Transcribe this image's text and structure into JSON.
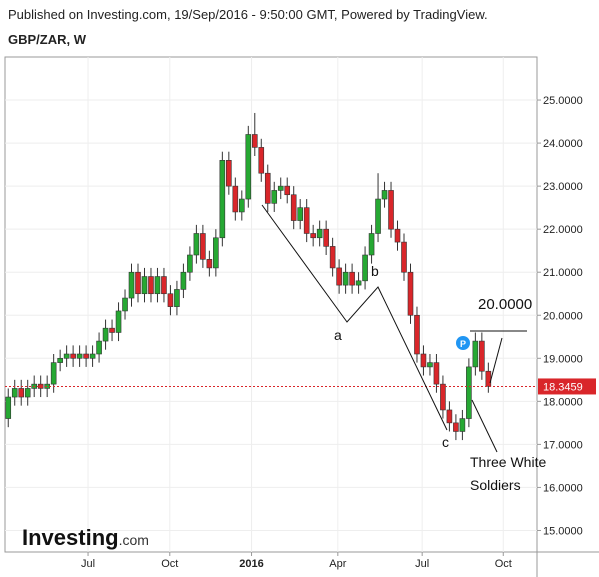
{
  "header": {
    "published": "Published on Investing.com, 19/Sep/2016 - 9:50:00 GMT, Powered by TradingView.",
    "symbol": "GBP/ZAR, W"
  },
  "logo": {
    "name": "Investing",
    "suffix": ".com"
  },
  "chart_data": {
    "type": "candlestick",
    "x": [
      0,
      1,
      2,
      3,
      4,
      5,
      6,
      7,
      8,
      9,
      10,
      11,
      12,
      13,
      14,
      15,
      16,
      17,
      18,
      19,
      20,
      21,
      22,
      23,
      24,
      25,
      26,
      27,
      28,
      29,
      30,
      31,
      32,
      33,
      34,
      35,
      36,
      37,
      38,
      39,
      40,
      41,
      42,
      43,
      44,
      45,
      46,
      47,
      48,
      49,
      50,
      51,
      52,
      53,
      54,
      55,
      56,
      57,
      58,
      59,
      60,
      61,
      62,
      63,
      64,
      65,
      66,
      67,
      68,
      69,
      70,
      71,
      72,
      73,
      74
    ],
    "series": [
      {
        "up_color": "#26a833",
        "down_color": "#d9262a",
        "open": [
          17.6,
          18.1,
          18.3,
          18.1,
          18.3,
          18.4,
          18.3,
          18.4,
          18.9,
          19.0,
          19.1,
          19.0,
          19.1,
          19.0,
          19.1,
          19.4,
          19.7,
          19.6,
          20.1,
          20.4,
          21.0,
          20.5,
          20.9,
          20.5,
          20.9,
          20.5,
          20.2,
          20.6,
          21.0,
          21.4,
          21.9,
          21.3,
          21.1,
          21.8,
          23.6,
          23.0,
          22.4,
          22.7,
          24.2,
          23.9,
          23.3,
          22.6,
          22.9,
          23.0,
          22.8,
          22.2,
          22.5,
          21.9,
          21.8,
          22.0,
          21.6,
          21.1,
          20.7,
          21.0,
          20.7,
          20.8,
          21.4,
          21.9,
          22.7,
          22.9,
          22.0,
          21.7,
          21.0,
          20.0,
          19.1,
          18.8,
          18.9,
          18.4,
          17.8,
          17.5,
          17.3,
          17.6,
          18.8,
          19.4,
          18.7
        ],
        "high": [
          18.3,
          18.5,
          18.5,
          18.5,
          18.6,
          18.6,
          18.6,
          19.1,
          19.2,
          19.3,
          19.3,
          19.3,
          19.3,
          19.3,
          19.6,
          19.9,
          19.9,
          20.3,
          20.6,
          21.2,
          21.2,
          21.1,
          21.1,
          21.1,
          21.1,
          20.7,
          20.8,
          21.2,
          21.6,
          22.1,
          22.1,
          21.5,
          22.0,
          23.8,
          23.8,
          23.2,
          22.9,
          24.4,
          24.7,
          24.1,
          23.5,
          23.1,
          23.2,
          23.2,
          23.0,
          22.7,
          22.7,
          22.1,
          22.2,
          22.2,
          21.8,
          21.3,
          21.2,
          21.2,
          21.0,
          21.6,
          22.1,
          23.3,
          23.1,
          23.1,
          22.2,
          21.9,
          21.2,
          20.2,
          19.3,
          19.1,
          19.1,
          18.6,
          18.0,
          17.7,
          17.8,
          19.0,
          19.6,
          19.6,
          18.9
        ],
        "low": [
          17.4,
          17.9,
          17.9,
          17.9,
          18.1,
          18.1,
          18.1,
          18.2,
          18.7,
          18.8,
          18.8,
          18.8,
          18.8,
          18.8,
          18.9,
          19.2,
          19.4,
          19.4,
          19.9,
          20.2,
          20.3,
          20.3,
          20.3,
          20.3,
          20.3,
          20.0,
          20.0,
          20.4,
          20.8,
          21.2,
          21.1,
          20.9,
          20.9,
          21.6,
          22.8,
          22.2,
          22.2,
          22.5,
          23.7,
          23.1,
          22.4,
          22.4,
          22.7,
          22.6,
          22.0,
          22.0,
          21.7,
          21.6,
          21.6,
          21.4,
          20.9,
          20.5,
          20.5,
          20.5,
          20.5,
          20.6,
          21.2,
          21.7,
          22.5,
          21.8,
          21.5,
          20.8,
          19.8,
          18.9,
          18.6,
          18.6,
          18.2,
          17.6,
          17.3,
          17.1,
          17.1,
          17.4,
          18.6,
          18.5,
          18.2
        ],
        "close": [
          18.1,
          18.3,
          18.1,
          18.3,
          18.4,
          18.3,
          18.4,
          18.9,
          19.0,
          19.1,
          19.0,
          19.1,
          19.0,
          19.1,
          19.4,
          19.7,
          19.6,
          20.1,
          20.4,
          21.0,
          20.5,
          20.9,
          20.5,
          20.9,
          20.5,
          20.2,
          20.6,
          21.0,
          21.4,
          21.9,
          21.3,
          21.1,
          21.8,
          23.6,
          23.0,
          22.4,
          22.7,
          24.2,
          23.9,
          23.3,
          22.6,
          22.9,
          23.0,
          22.8,
          22.2,
          22.5,
          21.9,
          21.8,
          22.0,
          21.6,
          21.1,
          20.7,
          21.0,
          20.7,
          20.8,
          21.4,
          21.9,
          22.7,
          22.9,
          22.0,
          21.7,
          21.0,
          20.0,
          19.1,
          18.8,
          18.9,
          18.4,
          17.8,
          17.5,
          17.3,
          17.6,
          18.8,
          19.4,
          18.7,
          18.35
        ]
      }
    ],
    "xlim": [
      -0.5,
      81.5
    ],
    "xticks": [
      {
        "value": 12.3,
        "label": "Jul"
      },
      {
        "value": 24.9,
        "label": "Oct"
      },
      {
        "value": 37.5,
        "label": "2016"
      },
      {
        "value": 50.8,
        "label": "Apr"
      },
      {
        "value": 63.8,
        "label": "Jul"
      },
      {
        "value": 76.3,
        "label": "Oct"
      }
    ],
    "ylim": [
      14.5,
      26.0
    ],
    "yticks": [
      {
        "value": 15,
        "label": "15.0000"
      },
      {
        "value": 16,
        "label": "16.0000"
      },
      {
        "value": 17,
        "label": "17.0000"
      },
      {
        "value": 18,
        "label": "18.0000"
      },
      {
        "value": 19,
        "label": "19.0000"
      },
      {
        "value": 20,
        "label": "20.0000"
      },
      {
        "value": 21,
        "label": "21.0000"
      },
      {
        "value": 22,
        "label": "22.0000"
      },
      {
        "value": 23,
        "label": "23.0000"
      },
      {
        "value": 24,
        "label": "24.0000"
      },
      {
        "value": 25,
        "label": "25.0000"
      }
    ],
    "last_price": 18.3459,
    "last_price_color": "#d9262a",
    "grid": true,
    "annotations": {
      "a": "a",
      "b": "b",
      "c": "c",
      "target": "20.0000",
      "pattern_line1": "Three White",
      "pattern_line2": "Soldiers",
      "marker": "P"
    }
  }
}
